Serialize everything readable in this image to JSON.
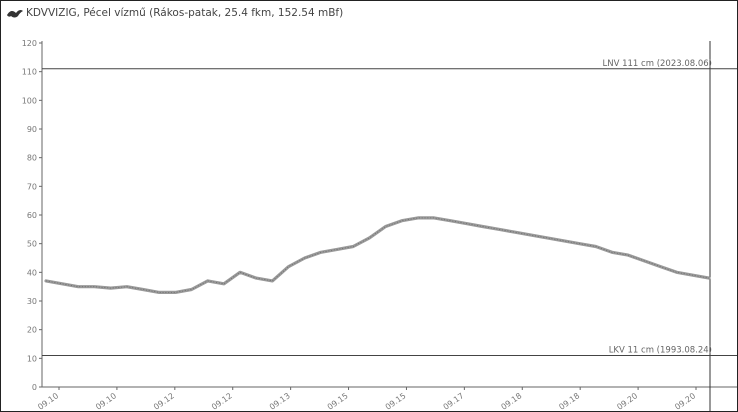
{
  "chart_data": {
    "type": "line",
    "title": "KDVVIZIG, Pécel vízmű (Rákos-patak, 25.4 fkm, 152.54 mBf)",
    "logo_icon": "bird-logo-icon",
    "xlabel": "",
    "ylabel": "",
    "ylim": [
      0,
      120
    ],
    "yticks": [
      0,
      10,
      20,
      30,
      40,
      50,
      60,
      70,
      80,
      90,
      100,
      110,
      120
    ],
    "x_tick_labels": [
      "09.10",
      "09.10",
      "09.12",
      "09.12",
      "09.13",
      "09.15",
      "09.15",
      "09.17",
      "09.18",
      "09.18",
      "09.20",
      "09.20"
    ],
    "grid": false,
    "reference_lines": [
      {
        "label": "LNV 111 cm (2023.08.06)",
        "value": 111
      },
      {
        "label": "LKV 11 cm (1993.08.24)",
        "value": 11
      }
    ],
    "series": [
      {
        "values": [
          37,
          36,
          35,
          35,
          34.5,
          35,
          34,
          33,
          33,
          34,
          37,
          36,
          40,
          38,
          37,
          42,
          45,
          47,
          48,
          49,
          52,
          56,
          58,
          59,
          59,
          58,
          57,
          56,
          55,
          54,
          53,
          52,
          51,
          50,
          49,
          47,
          46,
          44,
          42,
          40,
          39,
          38
        ]
      }
    ],
    "colors": {
      "line": "#9a9a9a",
      "reference": "#444444",
      "axis": "#666666"
    }
  }
}
